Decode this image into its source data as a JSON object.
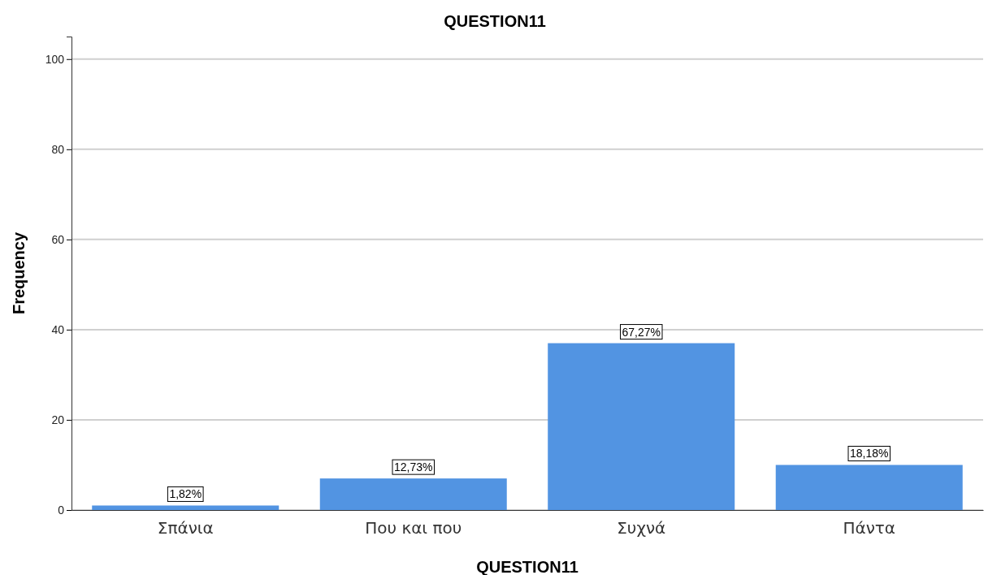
{
  "chart_data": {
    "type": "bar",
    "title": "QUESTION11",
    "xlabel": "QUESTION11",
    "ylabel": "Frequency",
    "categories": [
      "Σπάνια",
      "Που και που",
      "Συχνά",
      "Πάντα"
    ],
    "values": [
      1,
      7,
      37,
      10
    ],
    "annotations": [
      {
        "text": "1,82%",
        "x": "Σπάνια",
        "y": 1
      },
      {
        "text": "12,73%",
        "x": "Που και που",
        "y": 7
      },
      {
        "text": "67,27%",
        "x": "Συχνά",
        "y": 37
      },
      {
        "text": "18,18%",
        "x": "Πάντα",
        "y": 10
      }
    ],
    "color": "#5294e2",
    "ylim": [
      0,
      105
    ],
    "yticks": [
      0,
      20,
      40,
      60,
      80,
      100
    ],
    "grid": "y"
  }
}
